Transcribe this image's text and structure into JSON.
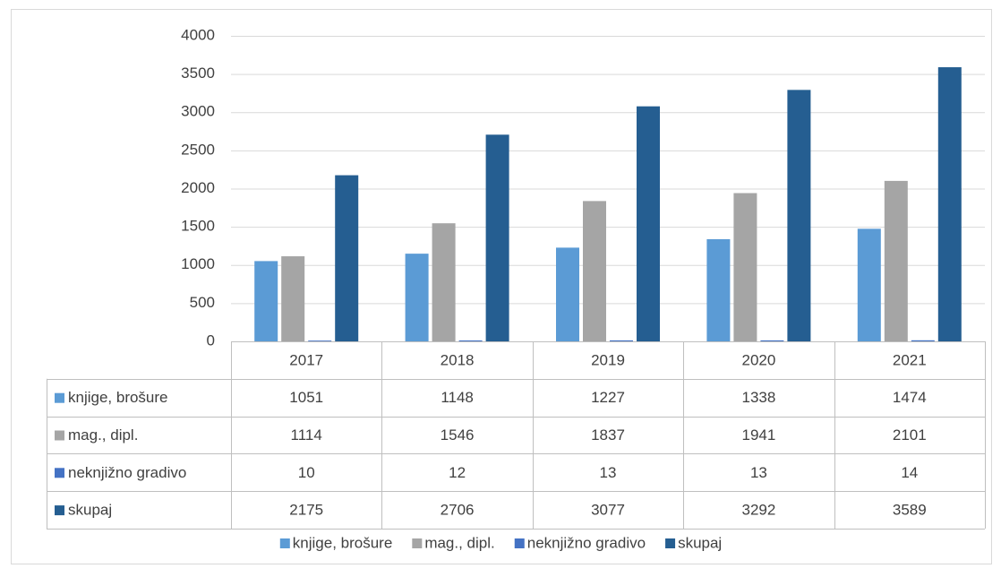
{
  "chart_data": {
    "type": "bar",
    "categories": [
      "2017",
      "2018",
      "2019",
      "2020",
      "2021"
    ],
    "series": [
      {
        "name": "knjige, brošure",
        "color": "#5b9bd5",
        "values": [
          1051,
          1148,
          1227,
          1338,
          1474
        ]
      },
      {
        "name": "mag., dipl.",
        "color": "#a5a5a5",
        "values": [
          1114,
          1546,
          1837,
          1941,
          2101
        ]
      },
      {
        "name": "neknjižno gradivo",
        "color": "#4472c4",
        "values": [
          10,
          12,
          13,
          13,
          14
        ]
      },
      {
        "name": "skupaj",
        "color": "#255e91",
        "values": [
          2175,
          2706,
          3077,
          3292,
          3589
        ]
      }
    ],
    "ylim": [
      0,
      4000
    ],
    "yticks": [
      0,
      500,
      1000,
      1500,
      2000,
      2500,
      3000,
      3500,
      4000
    ],
    "grid": true,
    "legend": "bottom",
    "data_table": true
  }
}
